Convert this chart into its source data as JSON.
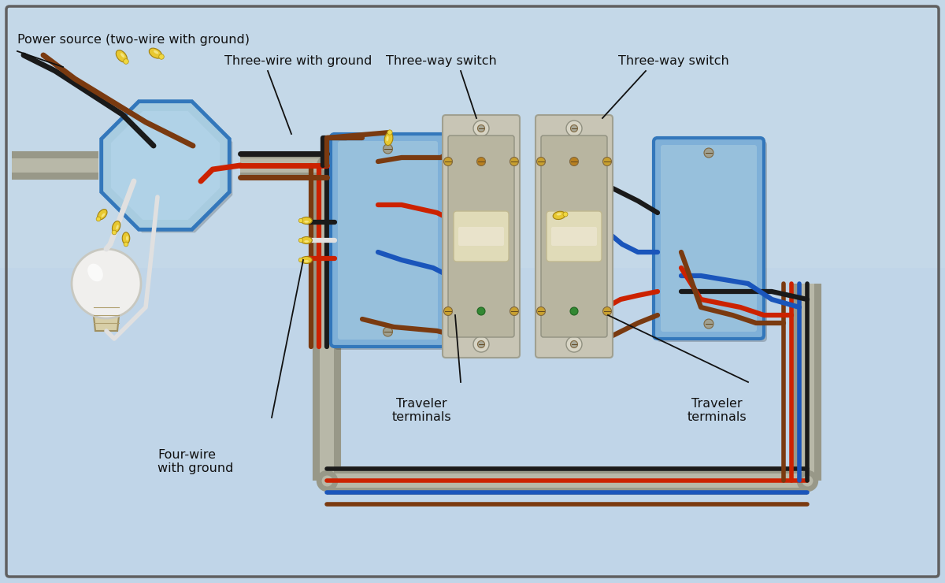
{
  "bg_top": "#b8cfe0",
  "bg_bot": "#ccdded",
  "bg_color": "#c4d8e8",
  "border_color": "#707070",
  "labels": {
    "power_source": "Power source (two-wire with ground)",
    "three_wire": "Three-wire with ground",
    "three_way_switch1": "Three-way switch",
    "three_way_switch2": "Three-way switch",
    "four_wire": "Four-wire\nwith ground",
    "traveler1": "Traveler\nterminals",
    "traveler2": "Traveler\nterminals"
  },
  "colors": {
    "black_wire": "#1a1a1a",
    "white_wire": "#e0e0e0",
    "red_wire": "#cc2200",
    "brown_wire": "#7a3a10",
    "blue_wire": "#1a55bb",
    "ground_wire": "#226622",
    "conduit": "#a0a090",
    "conduit_light": "#c8c8b8",
    "box_blue": "#3377bb",
    "box_fill": "#7fb0d8",
    "box_fill2": "#a8cce0",
    "switch_plate": "#d0cdb8",
    "switch_body": "#b8b5a0",
    "toggle": "#e0dbb8",
    "connector_yellow": "#e8c830",
    "connector_tip": "#f0d840",
    "screw_gold": "#c8a030",
    "screw_silver": "#b0b0a0"
  }
}
